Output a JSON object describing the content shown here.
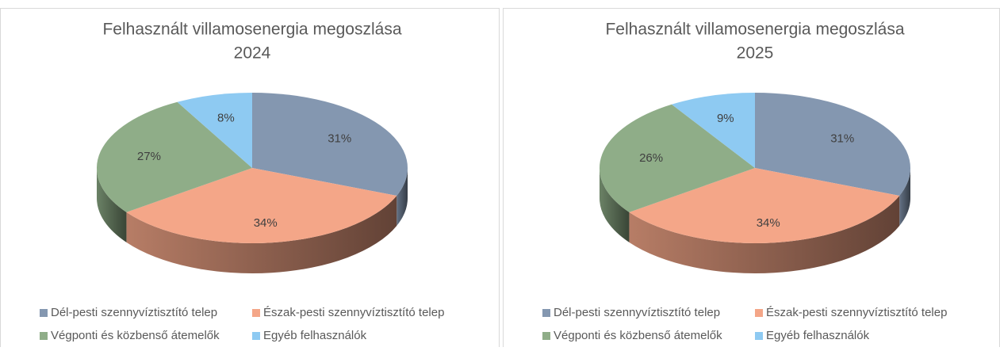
{
  "chart_data": [
    {
      "type": "pie3d",
      "title": "Felhasznált villamosenergia megoszlása",
      "subtitle": "2024",
      "categories": [
        "Dél-pesti szennyvíztisztító telep",
        "Észak-pesti szennyvíztisztító telep",
        "Végponti és közbenső átemelők",
        "Egyéb felhasználók"
      ],
      "values": [
        31,
        34,
        27,
        8
      ],
      "value_labels": [
        "31%",
        "34%",
        "27%",
        "8%"
      ],
      "colors": [
        "#8497b0",
        "#f4a688",
        "#8fad88",
        "#8ecaf2"
      ],
      "legend": "bottom"
    },
    {
      "type": "pie3d",
      "title": "Felhasznált villamosenergia megoszlása",
      "subtitle": "2025",
      "categories": [
        "Dél-pesti szennyvíztisztító telep",
        "Észak-pesti szennyvíztisztító telep",
        "Végponti és közbenső átemelők",
        "Egyéb felhasználók"
      ],
      "values": [
        31,
        34,
        26,
        9
      ],
      "value_labels": [
        "31%",
        "34%",
        "26%",
        "9%"
      ],
      "colors": [
        "#8497b0",
        "#f4a688",
        "#8fad88",
        "#8ecaf2"
      ],
      "legend": "bottom"
    }
  ]
}
